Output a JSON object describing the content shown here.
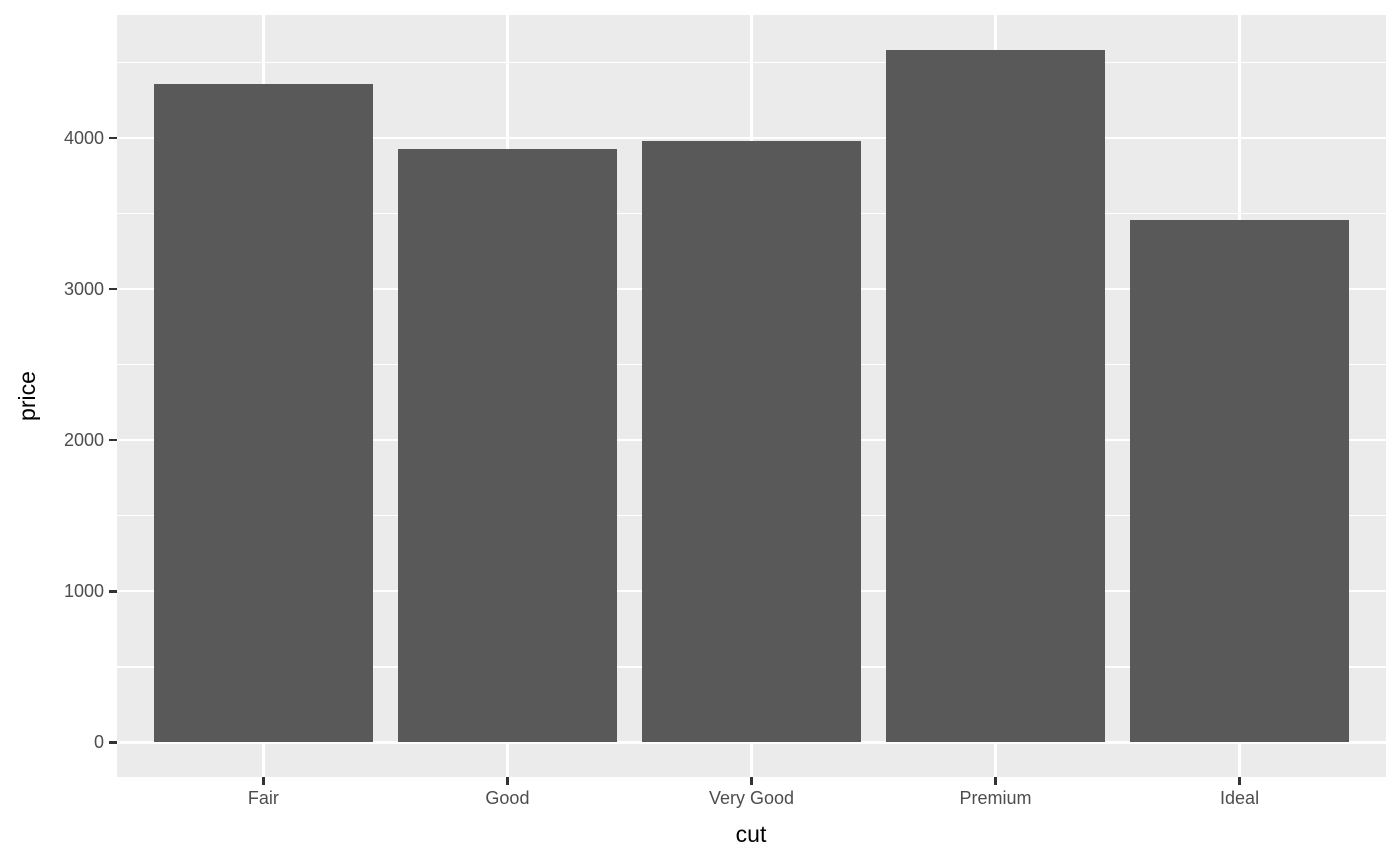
{
  "chart_data": {
    "type": "bar",
    "title": "",
    "xlabel": "cut",
    "ylabel": "price",
    "categories": [
      "Fair",
      "Good",
      "Very Good",
      "Premium",
      "Ideal"
    ],
    "values": [
      4359,
      3929,
      3982,
      4584,
      3458
    ],
    "ylim": [
      -229,
      4814
    ],
    "y_major_ticks": [
      0,
      1000,
      2000,
      3000,
      4000
    ],
    "y_tick_labels": [
      "0",
      "1000",
      "2000",
      "3000",
      "4000"
    ],
    "y_minor_ticks": [
      500,
      1500,
      2500,
      3500,
      4500
    ],
    "grid": "on",
    "legend": "none",
    "colors": {
      "bar_fill": "#595959",
      "panel_background": "#EBEBEB",
      "grid_major": "#FFFFFF",
      "grid_minor": "#FFFFFF",
      "tick_label": "#4D4D4D",
      "tick_mark": "#333333",
      "axis_title": "#000000",
      "outer_background": "#FFFFFF"
    }
  }
}
